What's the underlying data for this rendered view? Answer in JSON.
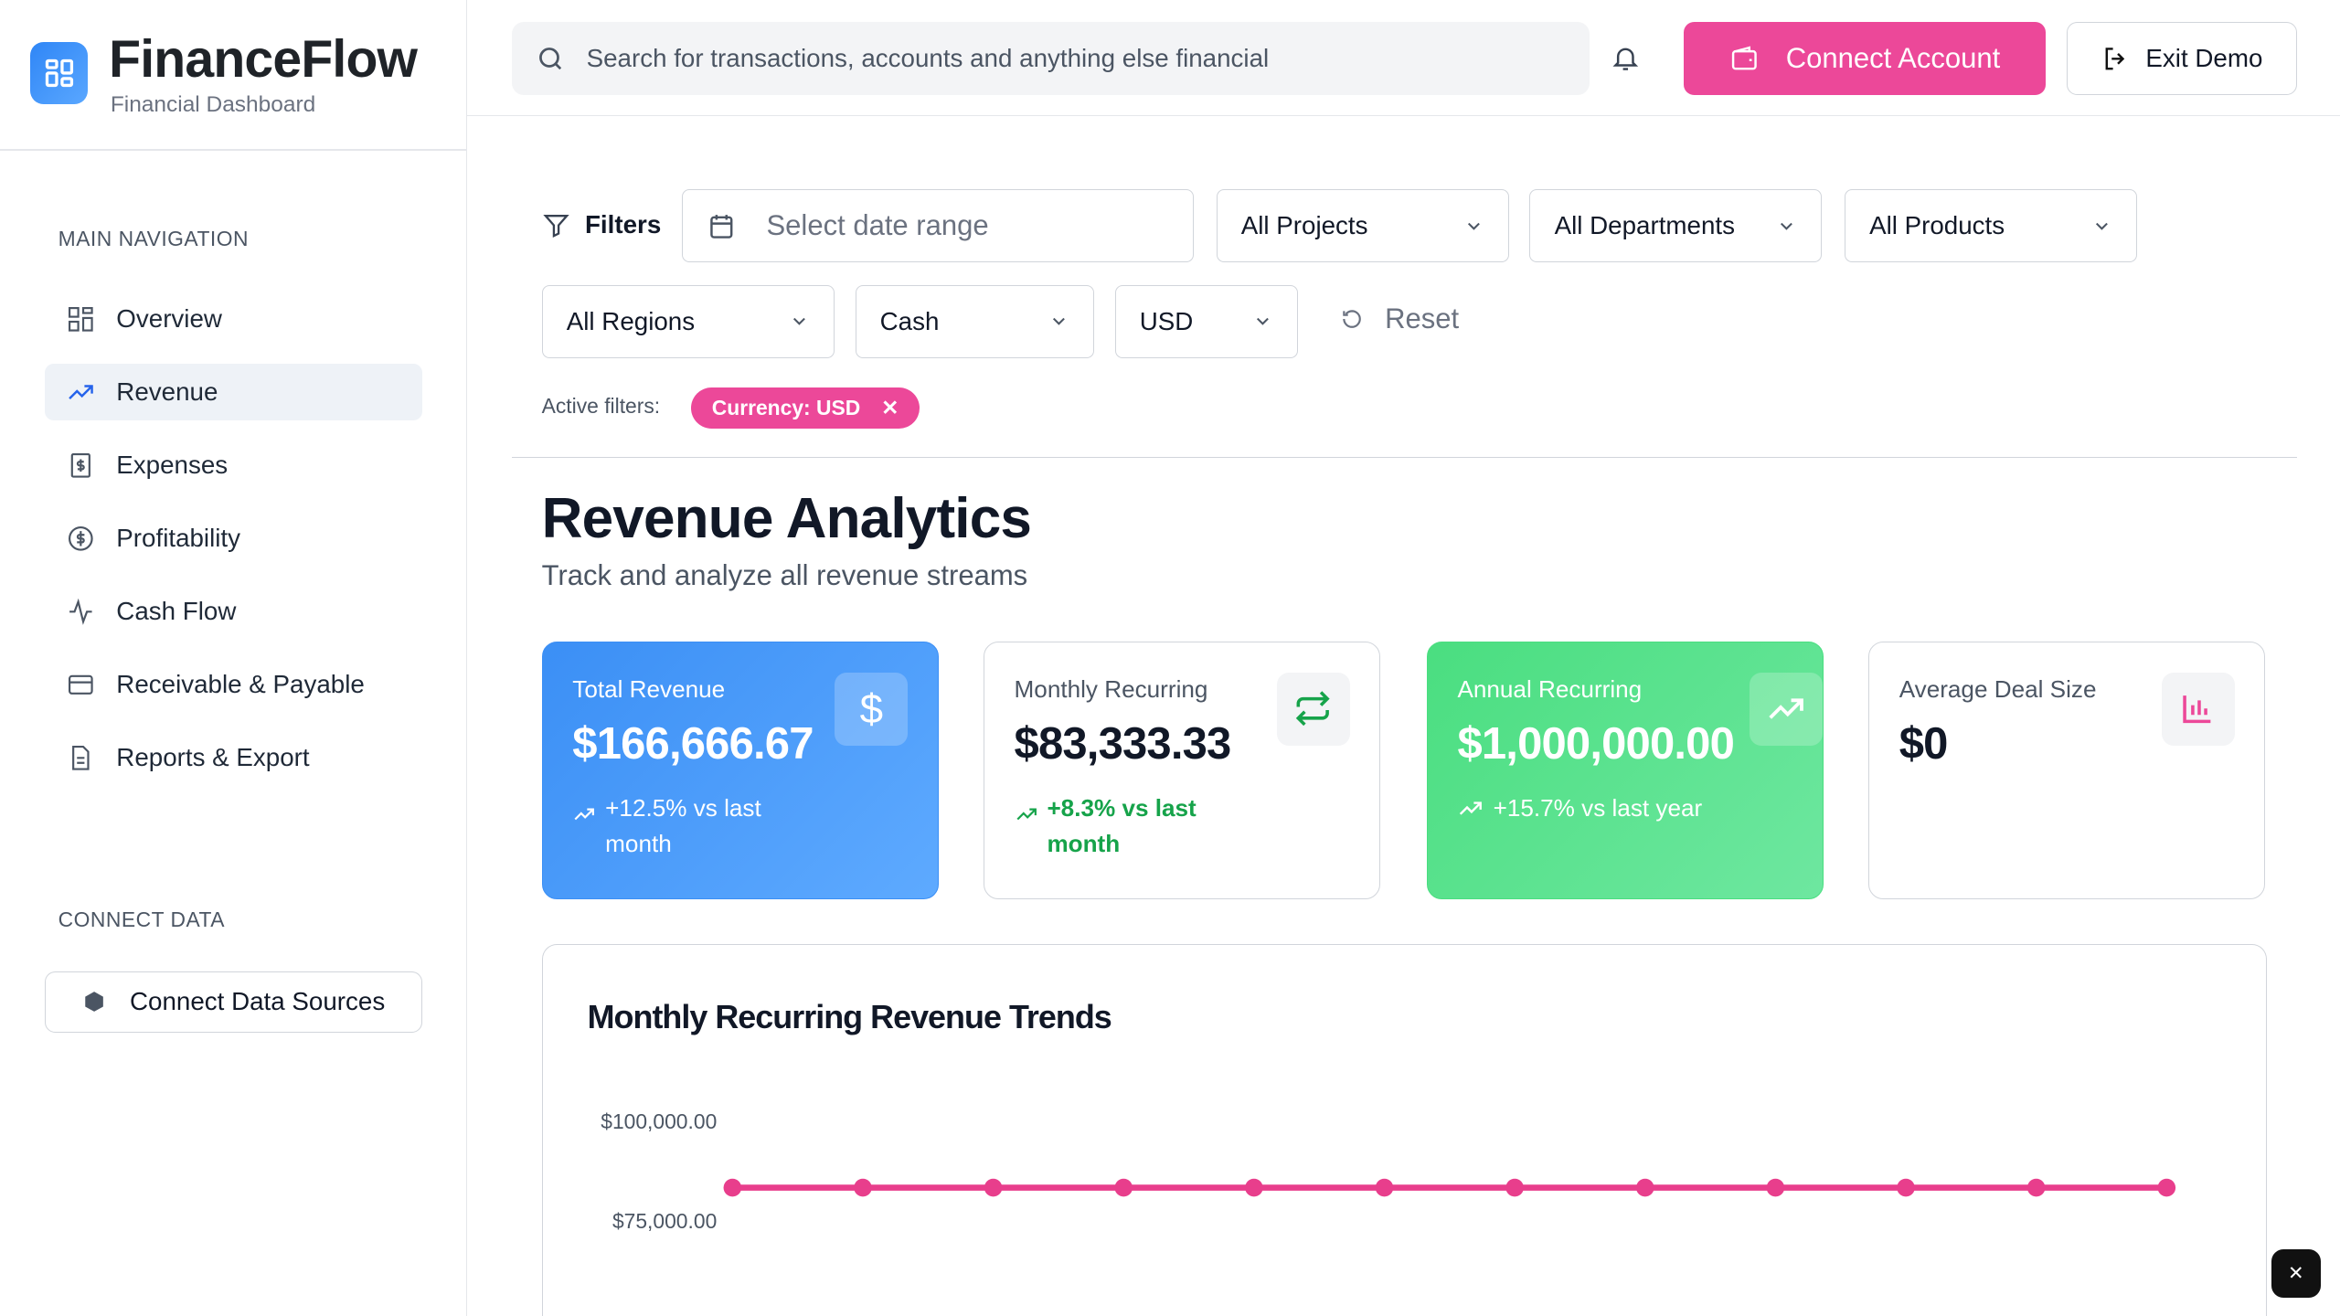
{
  "brand": {
    "name": "FinanceFlow",
    "subtitle": "Financial Dashboard"
  },
  "sidebar": {
    "main_heading": "MAIN NAVIGATION",
    "items": [
      {
        "label": "Overview",
        "icon": "grid-icon"
      },
      {
        "label": "Revenue",
        "icon": "trending-up-icon",
        "active": true
      },
      {
        "label": "Expenses",
        "icon": "receipt-icon"
      },
      {
        "label": "Profitability",
        "icon": "dollar-circle-icon"
      },
      {
        "label": "Cash Flow",
        "icon": "activity-icon"
      },
      {
        "label": "Receivable & Payable",
        "icon": "credit-card-icon"
      },
      {
        "label": "Reports & Export",
        "icon": "file-icon"
      }
    ],
    "connect_heading": "CONNECT DATA",
    "connect_button": "Connect Data Sources"
  },
  "topbar": {
    "search_placeholder": "Search for transactions, accounts and anything else financial",
    "connect_account": "Connect Account",
    "exit_demo": "Exit Demo"
  },
  "filters": {
    "label": "Filters",
    "date_placeholder": "Select date range",
    "projects": "All Projects",
    "departments": "All Departments",
    "products": "All Products",
    "regions": "All Regions",
    "account_type": "Cash",
    "currency": "USD",
    "reset": "Reset",
    "active_label": "Active filters:",
    "active_chip": "Currency: USD"
  },
  "page": {
    "title": "Revenue Analytics",
    "subtitle": "Track and analyze all revenue streams"
  },
  "cards": [
    {
      "label": "Total Revenue",
      "value": "$166,666.67",
      "change": "+12.5% vs last month",
      "icon": "dollar-icon"
    },
    {
      "label": "Monthly Recurring",
      "value": "$83,333.33",
      "change": "+8.3% vs last month",
      "icon": "repeat-icon"
    },
    {
      "label": "Annual Recurring",
      "value": "$1,000,000.00",
      "change": "+15.7% vs last year",
      "icon": "trending-up-icon"
    },
    {
      "label": "Average Deal Size",
      "value": "$0",
      "change": "",
      "icon": "bar-chart-icon"
    }
  ],
  "colors": {
    "accent": "#ec4899",
    "blue": "#3b8ff5",
    "green": "#4ade80"
  },
  "chart_data": {
    "type": "line",
    "title": "Monthly Recurring Revenue Trends",
    "ytick_labels": [
      "$100,000.00",
      "$75,000.00"
    ],
    "yticks": [
      100000,
      75000
    ],
    "values": [
      83333.33,
      83333.33,
      83333.33,
      83333.33,
      83333.33,
      83333.33,
      83333.33,
      83333.33,
      83333.33,
      83333.33,
      83333.33,
      83333.33
    ],
    "color": "#e83e8c"
  }
}
